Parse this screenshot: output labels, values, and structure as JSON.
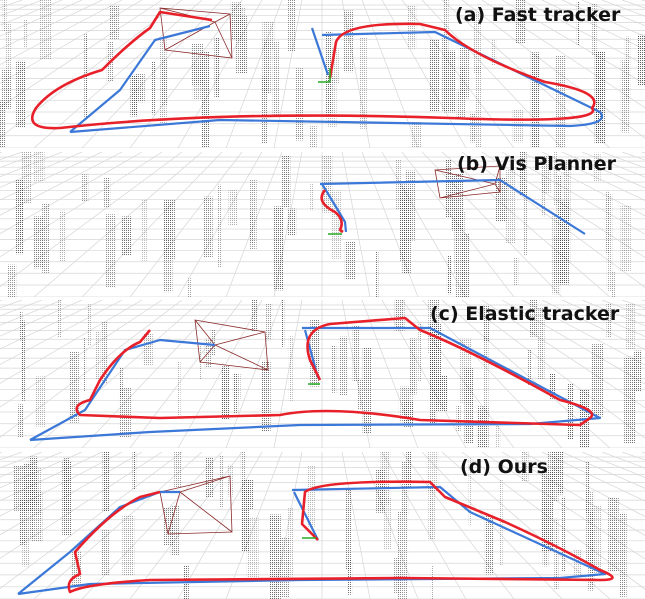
{
  "panels": [
    {
      "label": "(a) Fast tracker"
    },
    {
      "label": "(b) Vis Planner"
    },
    {
      "label": "(c) Elastic tracker"
    },
    {
      "label": "(d)  Ours"
    }
  ]
}
